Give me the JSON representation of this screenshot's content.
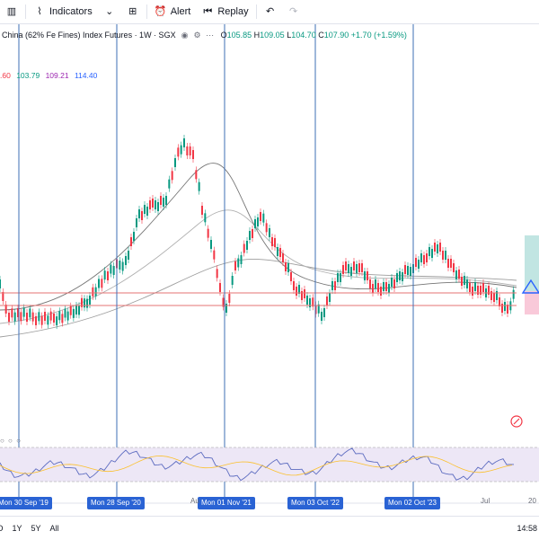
{
  "toolbar": {
    "items": [
      {
        "icon": "candles-icon",
        "label": ""
      },
      {
        "icon": "indicators-icon",
        "label": "Indicators"
      },
      {
        "icon": "chevron-down-icon",
        "label": ""
      },
      {
        "icon": "layout-icon",
        "label": ""
      },
      {
        "icon": "alert-icon",
        "label": "Alert"
      },
      {
        "icon": "replay-icon",
        "label": "Replay"
      },
      {
        "icon": "undo-icon",
        "label": ""
      },
      {
        "icon": "redo-icon",
        "label": ""
      }
    ]
  },
  "legend": {
    "title": "China (62% Fe Fines) Index Futures · 1W · SGX",
    "open": "105.85",
    "high": "109.05",
    "low": "104.70",
    "close": "107.90",
    "change": "+1.70 (+1.59%)",
    "o_key": "O",
    "h_key": "H",
    "l_key": "L",
    "c_key": "C"
  },
  "moving_averages": {
    "values": [
      ".60",
      "103.79",
      "109.21",
      "114.40"
    ],
    "colors": [
      "#f23645",
      "#089981",
      "#9c27b0",
      "#2962ff"
    ]
  },
  "rsi_dots": "○ ○ ○",
  "timeline": {
    "tags": [
      "Mon 30 Sep '19",
      "Mon 28 Sep '20",
      "Mon 01 Nov '21",
      "Mon 03 Oct '22",
      "Mon 02 Oct '23"
    ],
    "axis_labels": [
      "Au",
      "Jul",
      "20"
    ]
  },
  "bottom_bar": {
    "ranges": [
      "D",
      "1Y",
      "5Y",
      "All"
    ],
    "clock": "14:58"
  },
  "colors": {
    "up": "#089981",
    "down": "#f23645",
    "vline": "#3d6fb6",
    "hline": "#e57373",
    "rsi_band": "#ede7f6",
    "rsi_line": "#5c6bc0"
  }
}
